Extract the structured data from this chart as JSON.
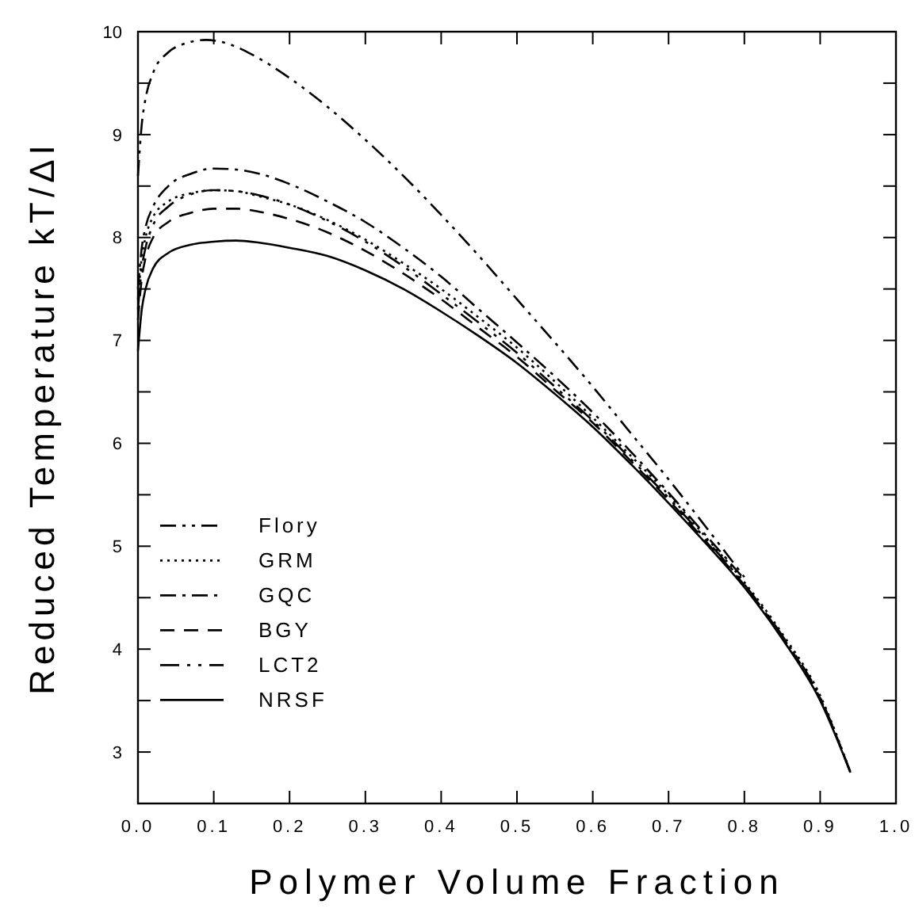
{
  "chart_data": {
    "type": "line",
    "xlabel": "Polymer Volume Fraction",
    "ylabel": "Reduced Temperature kT/ΔI",
    "xlim": [
      0,
      1
    ],
    "ylim": [
      2.5,
      10
    ],
    "xticks": [
      {
        "value": 0,
        "label": "0.0"
      },
      {
        "value": 0.1,
        "label": "0.1"
      },
      {
        "value": 0.2,
        "label": "0.2"
      },
      {
        "value": 0.3,
        "label": "0.3"
      },
      {
        "value": 0.4,
        "label": "0.4"
      },
      {
        "value": 0.5,
        "label": "0.5"
      },
      {
        "value": 0.6,
        "label": "0.6"
      },
      {
        "value": 0.7,
        "label": "0.7"
      },
      {
        "value": 0.8,
        "label": "0.8"
      },
      {
        "value": 0.9,
        "label": "0.9"
      },
      {
        "value": 1,
        "label": "1.0"
      }
    ],
    "yticks": [
      3,
      {
        "value": 3.5,
        "label": null
      },
      4,
      {
        "value": 4.5,
        "label": null
      },
      5,
      {
        "value": 5.5,
        "label": null
      },
      6,
      {
        "value": 6.5,
        "label": null
      },
      7,
      {
        "value": 7.5,
        "label": null
      },
      8,
      {
        "value": 8.5,
        "label": null
      },
      9,
      {
        "value": 9.5,
        "label": null
      },
      10
    ],
    "grid": false,
    "legend": "left",
    "marker": "none",
    "series": [
      {
        "name": "Flory",
        "color": "#000000",
        "line_style": "dashed",
        "x": [
          0,
          0.005,
          0.01,
          0.02,
          0.04,
          0.06,
          0.09,
          0.12,
          0.15,
          0.2,
          0.25,
          0.3,
          0.35,
          0.4,
          0.45,
          0.5,
          0.55,
          0.6,
          0.65,
          0.7,
          0.75,
          0.8
        ],
        "values": [
          8.6,
          9.1,
          9.35,
          9.6,
          9.8,
          9.88,
          9.92,
          9.88,
          9.78,
          9.55,
          9.27,
          8.95,
          8.6,
          8.22,
          7.82,
          7.4,
          6.98,
          6.55,
          6.1,
          5.65,
          5.18,
          4.7
        ]
      },
      {
        "name": "GRM",
        "color": "#000000",
        "line_style": "dotted",
        "x": [
          0,
          0.005,
          0.01,
          0.02,
          0.04,
          0.07,
          0.1,
          0.13,
          0.16,
          0.2,
          0.25,
          0.3,
          0.35,
          0.4,
          0.45,
          0.5,
          0.55,
          0.6,
          0.65,
          0.7,
          0.75,
          0.8,
          0.85,
          0.9,
          0.94
        ],
        "values": [
          7.4,
          7.8,
          8.0,
          8.2,
          8.35,
          8.43,
          8.46,
          8.45,
          8.4,
          8.32,
          8.17,
          7.98,
          7.75,
          7.5,
          7.22,
          6.93,
          6.6,
          6.25,
          5.88,
          5.5,
          5.08,
          4.65,
          4.15,
          3.55,
          2.8
        ]
      },
      {
        "name": "GQC",
        "color": "#000000",
        "line_style": "dashed",
        "x": [
          0,
          0.005,
          0.01,
          0.02,
          0.04,
          0.07,
          0.1,
          0.13,
          0.16,
          0.2,
          0.25,
          0.3,
          0.35,
          0.4,
          0.45,
          0.5,
          0.55,
          0.6,
          0.65,
          0.7,
          0.75,
          0.8
        ],
        "values": [
          7.5,
          7.9,
          8.1,
          8.3,
          8.5,
          8.62,
          8.67,
          8.66,
          8.62,
          8.52,
          8.35,
          8.15,
          7.9,
          7.62,
          7.3,
          6.98,
          6.65,
          6.3,
          5.92,
          5.52,
          5.1,
          4.68
        ]
      },
      {
        "name": "BGY",
        "color": "#000000",
        "line_style": "dashed",
        "x": [
          0,
          0.005,
          0.01,
          0.02,
          0.04,
          0.07,
          0.1,
          0.13,
          0.16,
          0.2,
          0.25,
          0.3,
          0.35,
          0.4,
          0.45,
          0.5,
          0.55,
          0.6,
          0.65,
          0.7,
          0.75,
          0.8,
          0.85,
          0.9,
          0.94
        ],
        "values": [
          7.2,
          7.6,
          7.8,
          8.0,
          8.15,
          8.24,
          8.28,
          8.28,
          8.25,
          8.18,
          8.05,
          7.87,
          7.65,
          7.4,
          7.12,
          6.84,
          6.52,
          6.2,
          5.83,
          5.45,
          5.04,
          4.62,
          4.12,
          3.52,
          2.8
        ]
      },
      {
        "name": "LCT2",
        "color": "#000000",
        "line_style": "dashed",
        "x": [
          0,
          0.005,
          0.01,
          0.02,
          0.04,
          0.07,
          0.1,
          0.13,
          0.16,
          0.2,
          0.25,
          0.3,
          0.35,
          0.4,
          0.45,
          0.5,
          0.55,
          0.6,
          0.65,
          0.7,
          0.75,
          0.8,
          0.85,
          0.9,
          0.94
        ],
        "values": [
          7.3,
          7.7,
          7.9,
          8.12,
          8.3,
          8.42,
          8.46,
          8.45,
          8.41,
          8.32,
          8.16,
          7.96,
          7.72,
          7.45,
          7.17,
          6.88,
          6.55,
          6.22,
          5.85,
          5.47,
          5.06,
          4.63,
          4.13,
          3.53,
          2.8
        ]
      },
      {
        "name": "NRSF",
        "color": "#000000",
        "line_style": "solid",
        "x": [
          0,
          0.005,
          0.01,
          0.02,
          0.04,
          0.07,
          0.1,
          0.13,
          0.16,
          0.2,
          0.25,
          0.3,
          0.35,
          0.4,
          0.45,
          0.5,
          0.55,
          0.6,
          0.65,
          0.7,
          0.75,
          0.8,
          0.85,
          0.9,
          0.94
        ],
        "values": [
          6.9,
          7.3,
          7.5,
          7.7,
          7.85,
          7.93,
          7.96,
          7.97,
          7.95,
          7.9,
          7.82,
          7.68,
          7.5,
          7.28,
          7.04,
          6.78,
          6.48,
          6.16,
          5.8,
          5.42,
          5.02,
          4.6,
          4.1,
          3.5,
          2.8
        ]
      }
    ]
  }
}
